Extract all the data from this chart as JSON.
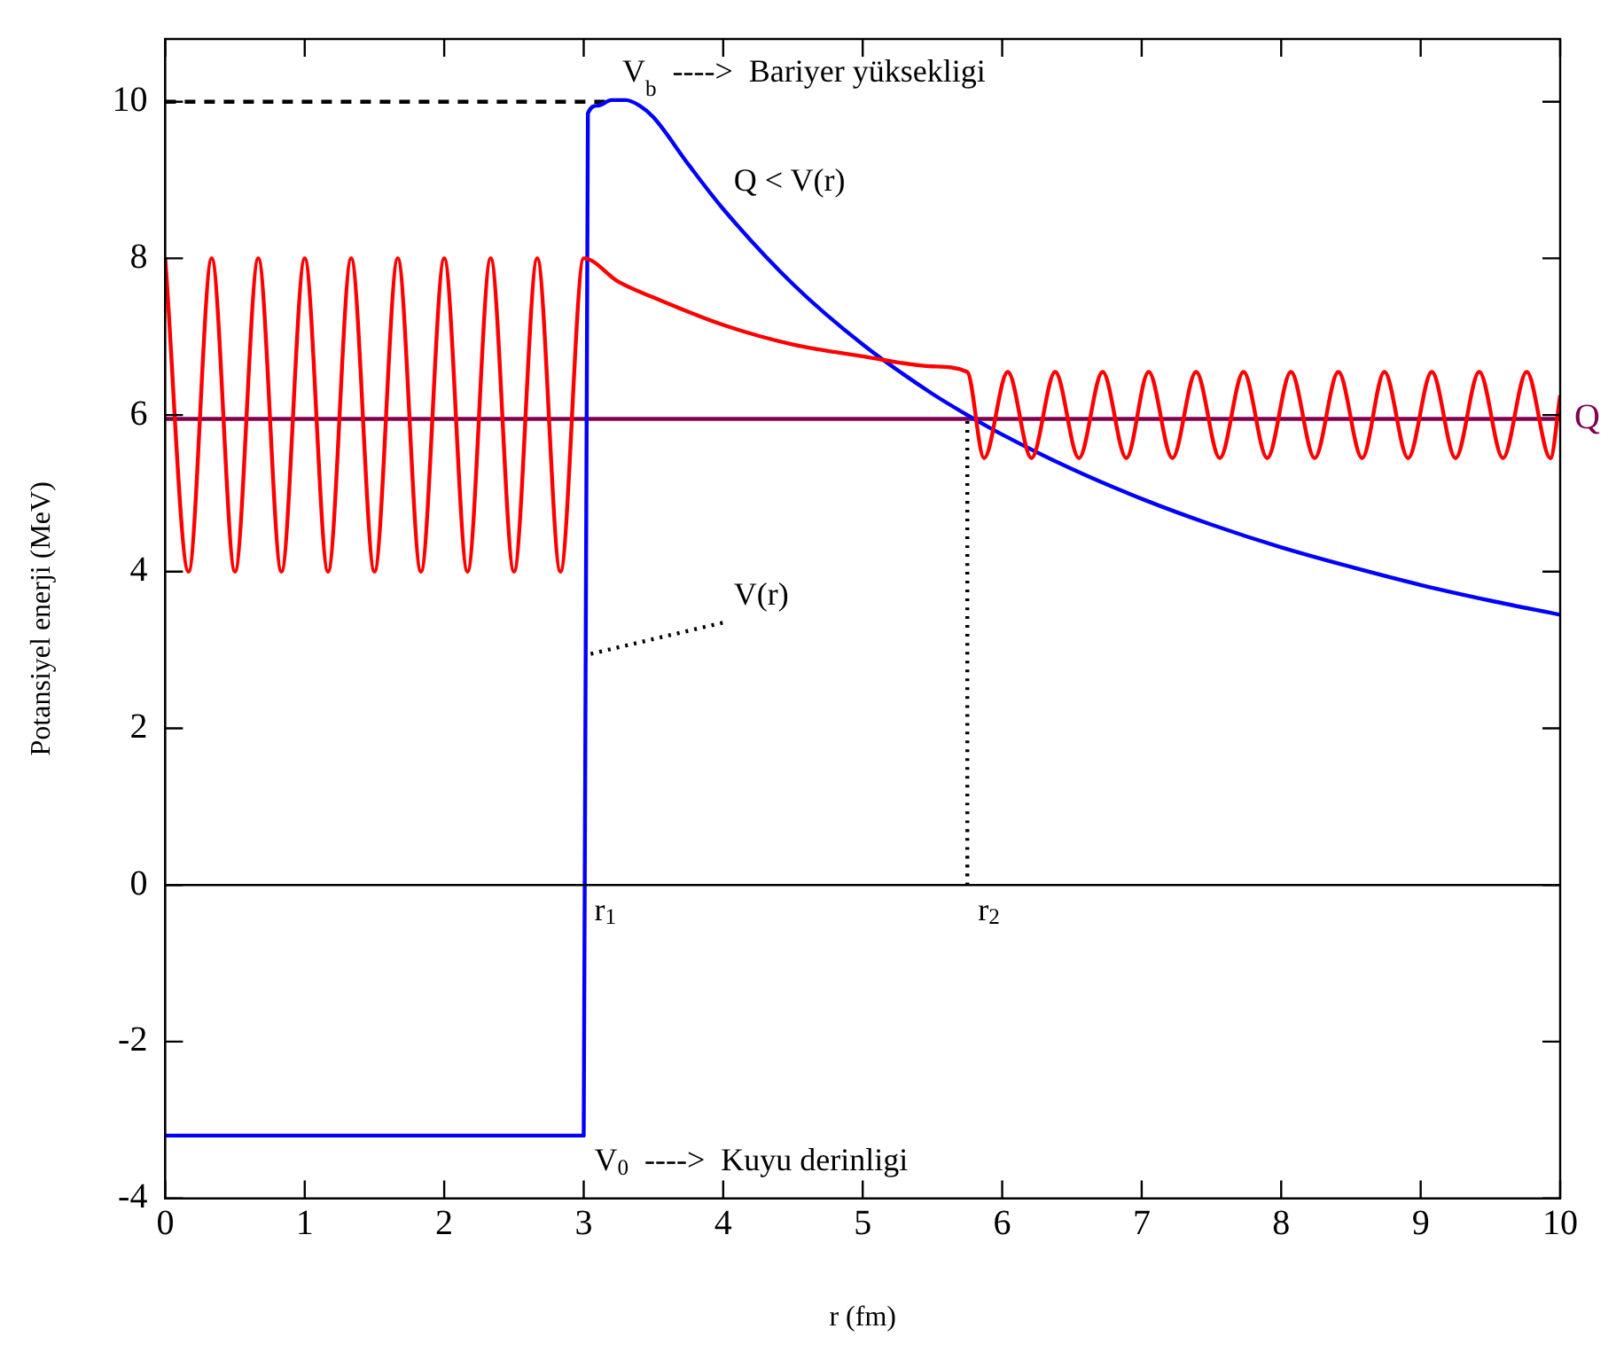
{
  "chart_data": {
    "type": "line",
    "xlabel": "r (fm)",
    "ylabel": "Potansiyel enerji (MeV)",
    "xlim": [
      0,
      10
    ],
    "xticks": [
      0,
      1,
      2,
      3,
      4,
      5,
      6,
      7,
      8,
      9,
      10
    ],
    "ylim": [
      -4,
      10.8
    ],
    "yticks": [
      -4,
      -2,
      0,
      2,
      4,
      6,
      8,
      10
    ],
    "grid": false,
    "legend": false,
    "marker": "none",
    "series": [
      {
        "color": "#ff0000",
        "line_style": "solid",
        "x": [
          0,
          0.167,
          0.333,
          0.5,
          0.667,
          0.833,
          1.0,
          1.167,
          1.333,
          1.5,
          1.667,
          1.833,
          2.0,
          2.167,
          2.333,
          2.5,
          2.667,
          2.833,
          3.0,
          3.25,
          3.5,
          4,
          4.5,
          5,
          5.5,
          5.75,
          5.87,
          6.04,
          6.21,
          6.38,
          6.55,
          6.72,
          6.89,
          7.05,
          7.22,
          7.39,
          7.56,
          7.73,
          7.9,
          8.07,
          8.24,
          8.41,
          8.58,
          8.74,
          8.91,
          9.08,
          9.25,
          9.42,
          9.59,
          9.76,
          9.93,
          10
        ],
        "values": [
          8,
          4,
          8,
          4,
          8,
          4,
          8,
          4,
          8,
          4,
          8,
          4,
          8,
          4,
          8,
          4,
          8,
          4,
          8,
          7.7,
          7.5,
          7.15,
          6.9,
          6.75,
          6.62,
          6.55,
          5.45,
          6.55,
          5.45,
          6.55,
          5.45,
          6.55,
          5.45,
          6.55,
          5.45,
          6.55,
          5.45,
          6.55,
          5.45,
          6.55,
          5.45,
          6.55,
          5.45,
          6.55,
          5.45,
          6.55,
          5.45,
          6.55,
          5.45,
          6.55,
          5.45,
          6.25
        ]
      },
      {
        "color": "#0000ff",
        "line_style": "solid",
        "x": [
          0,
          2.98,
          3.0,
          3.03,
          3.1,
          3.2,
          3.3,
          3.4,
          3.5,
          3.75,
          4,
          4.5,
          5,
          5.5,
          5.75,
          6,
          6.5,
          7,
          7.5,
          8,
          8.5,
          9,
          9.5,
          10
        ],
        "values": [
          -3.2,
          -3.2,
          -3.2,
          9.85,
          9.95,
          10.02,
          10.02,
          9.95,
          9.8,
          9.2,
          8.63,
          7.67,
          6.9,
          6.27,
          6.0,
          5.75,
          5.31,
          4.93,
          4.6,
          4.31,
          4.06,
          3.83,
          3.63,
          3.45
        ]
      },
      {
        "name": "Q",
        "color": "#800050",
        "line_style": "solid",
        "x": [
          0,
          10
        ],
        "values": [
          5.95,
          5.95
        ]
      },
      {
        "color": "#000000",
        "line_style": "dashed",
        "x": [
          0,
          3.2
        ],
        "values": [
          10,
          10
        ]
      },
      {
        "color": "#000000",
        "line_style": "dotted",
        "x": [
          5.75,
          5.75
        ],
        "values": [
          0,
          6
        ]
      },
      {
        "color": "#000000",
        "line_style": "dotted",
        "x": [
          3.05,
          4.0
        ],
        "values": [
          2.95,
          3.35
        ]
      }
    ],
    "ref_lines": [
      {
        "axis": "y",
        "value": 0,
        "color": "#000000"
      }
    ],
    "annotations": [
      {
        "text": "V$_{b}$  ---->  Bariyer yüksekligi",
        "x": 3.2,
        "y": 10.02
      },
      {
        "text": "Q < V(r)",
        "x": 4,
        "y": 8.63
      },
      {
        "text": "V(r)",
        "x": 4.0,
        "y": 3.35
      },
      {
        "text": "r$_{1}$",
        "x": 3.0,
        "y": 0
      },
      {
        "text": "r$_{2}$",
        "x": 5.75,
        "y": 0
      },
      {
        "text": "V$_{0}$  ---->  Kuyu derinligi",
        "x": 3.0,
        "y": -3.2
      }
    ]
  }
}
